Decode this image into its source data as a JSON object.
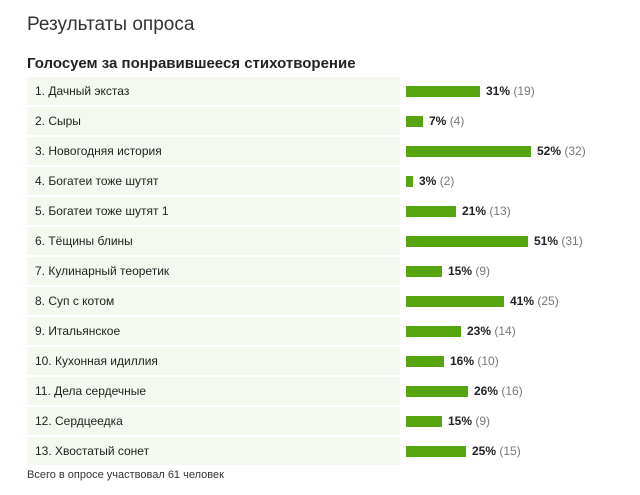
{
  "page_title": "Результаты опроса",
  "poll": {
    "question": "Голосуем за понравившееся стихотворение",
    "bar_color": "#56a510",
    "options": [
      {
        "label": "1. Дачный экстаз",
        "percent_text": "31%",
        "count_text": "(19)",
        "percent": 31
      },
      {
        "label": "2. Сыры",
        "percent_text": "7%",
        "count_text": "(4)",
        "percent": 7
      },
      {
        "label": "3. Новогодняя история",
        "percent_text": "52%",
        "count_text": "(32)",
        "percent": 52
      },
      {
        "label": "4. Богатеи тоже шутят",
        "percent_text": "3%",
        "count_text": "(2)",
        "percent": 3
      },
      {
        "label": "5. Богатеи тоже шутят 1",
        "percent_text": "21%",
        "count_text": "(13)",
        "percent": 21
      },
      {
        "label": "6. Тёщины блины",
        "percent_text": "51%",
        "count_text": "(31)",
        "percent": 51
      },
      {
        "label": "7. Кулинарный теоретик",
        "percent_text": "15%",
        "count_text": "(9)",
        "percent": 15
      },
      {
        "label": "8. Суп с котом",
        "percent_text": "41%",
        "count_text": "(25)",
        "percent": 41
      },
      {
        "label": "9. Итальянское",
        "percent_text": "23%",
        "count_text": "(14)",
        "percent": 23
      },
      {
        "label": "10. Кухонная идиллия",
        "percent_text": "16%",
        "count_text": "(10)",
        "percent": 16
      },
      {
        "label": "11. Дела сердечные",
        "percent_text": "26%",
        "count_text": "(16)",
        "percent": 26
      },
      {
        "label": "12. Сердцеедка",
        "percent_text": "15%",
        "count_text": "(9)",
        "percent": 15
      },
      {
        "label": "13. Хвостатый сонет",
        "percent_text": "25%",
        "count_text": "(15)",
        "percent": 25
      }
    ],
    "footer": "Всего в опросе участвовал 61 человек"
  }
}
